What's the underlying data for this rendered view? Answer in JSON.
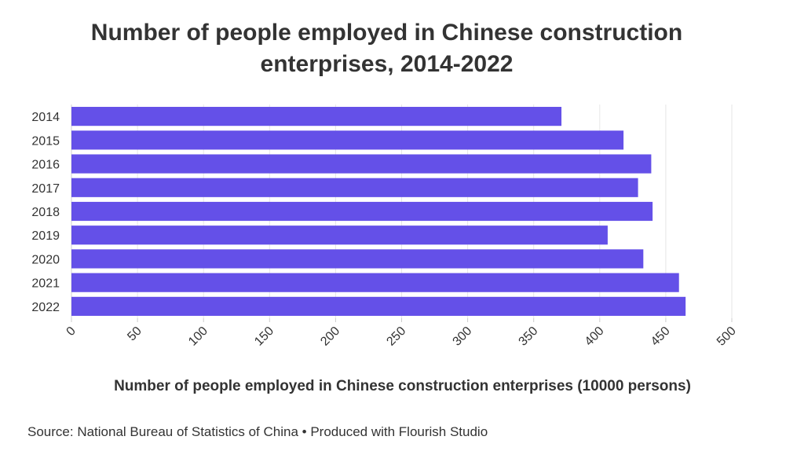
{
  "chart_data": {
    "type": "bar",
    "orientation": "horizontal",
    "title": "Number of people employed in Chinese construction enterprises, 2014-2022",
    "xlabel": "Number of people employed in Chinese construction enterprises (10000 persons)",
    "ylabel": "",
    "categories": [
      "2014",
      "2015",
      "2016",
      "2017",
      "2018",
      "2019",
      "2020",
      "2021",
      "2022"
    ],
    "values": [
      371,
      418,
      439,
      429,
      440,
      406,
      433,
      460,
      465
    ],
    "xlim": [
      0,
      500
    ],
    "xticks": [
      "0",
      "50",
      "100",
      "150",
      "200",
      "250",
      "300",
      "350",
      "400",
      "450",
      "500"
    ],
    "tick_rotation": -45,
    "grid": true,
    "bar_color": "#6450e8"
  },
  "footer": {
    "source_label": "Source: ",
    "source": "National Bureau of Statistics of China",
    "separator": " • ",
    "credit": "Produced with Flourish Studio"
  }
}
